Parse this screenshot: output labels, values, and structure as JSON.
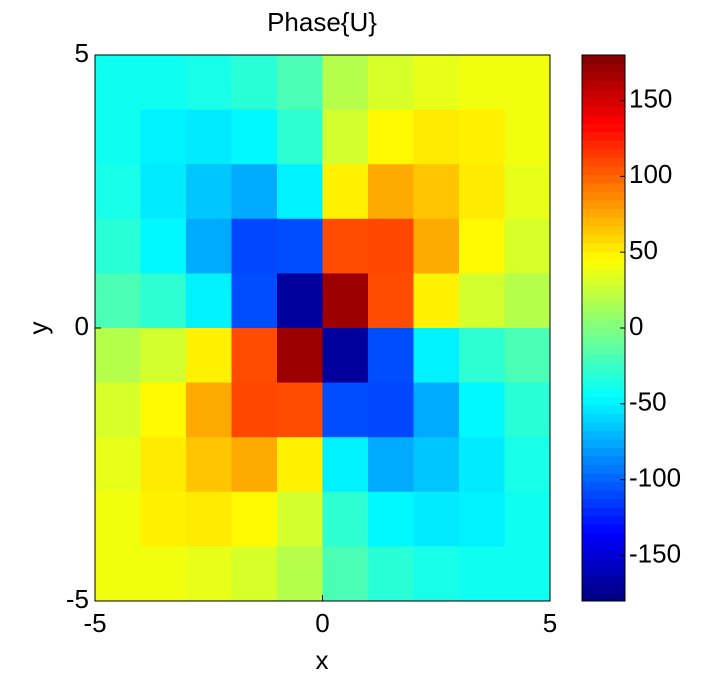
{
  "chart_data": {
    "type": "heatmap",
    "title": "Phase{U}",
    "x_label": "x",
    "y_label": "y",
    "x": [
      -4.5,
      -3.5,
      -2.5,
      -1.5,
      -0.5,
      0.5,
      1.5,
      2.5,
      3.5,
      4.5
    ],
    "y": [
      4.5,
      3.5,
      2.5,
      1.5,
      0.5,
      -0.5,
      -1.5,
      -2.5,
      -3.5,
      -4.5
    ],
    "z": [
      [
        -40,
        -40,
        -37,
        -31,
        -19,
        19,
        31,
        37,
        40,
        40
      ],
      [
        -40,
        -50,
        -52,
        -47,
        -29,
        29,
        47,
        52,
        50,
        40
      ],
      [
        -37,
        -52,
        -65,
        -75,
        -50,
        50,
        75,
        65,
        52,
        37
      ],
      [
        -31,
        -47,
        -75,
        -110,
        -108,
        108,
        110,
        75,
        47,
        31
      ],
      [
        -19,
        -29,
        -50,
        -108,
        -170,
        170,
        108,
        50,
        29,
        19
      ],
      [
        19,
        29,
        50,
        108,
        170,
        -170,
        -108,
        -50,
        -29,
        -19
      ],
      [
        31,
        47,
        75,
        110,
        108,
        -108,
        -110,
        -75,
        -47,
        -31
      ],
      [
        37,
        52,
        65,
        75,
        50,
        -50,
        -75,
        -65,
        -52,
        -37
      ],
      [
        40,
        50,
        52,
        47,
        29,
        -29,
        -47,
        -52,
        -50,
        -40
      ],
      [
        40,
        40,
        37,
        31,
        19,
        -19,
        -31,
        -37,
        -40,
        -40
      ]
    ],
    "xlim": [
      -5,
      5
    ],
    "ylim": [
      -5,
      5
    ],
    "xticks": [
      -5,
      0,
      5
    ],
    "yticks": [
      -5,
      0,
      5
    ],
    "colormap": "jet",
    "clim": [
      -180,
      180
    ],
    "colorbar_ticks": [
      -150,
      -100,
      -50,
      0,
      50,
      100,
      150
    ]
  }
}
